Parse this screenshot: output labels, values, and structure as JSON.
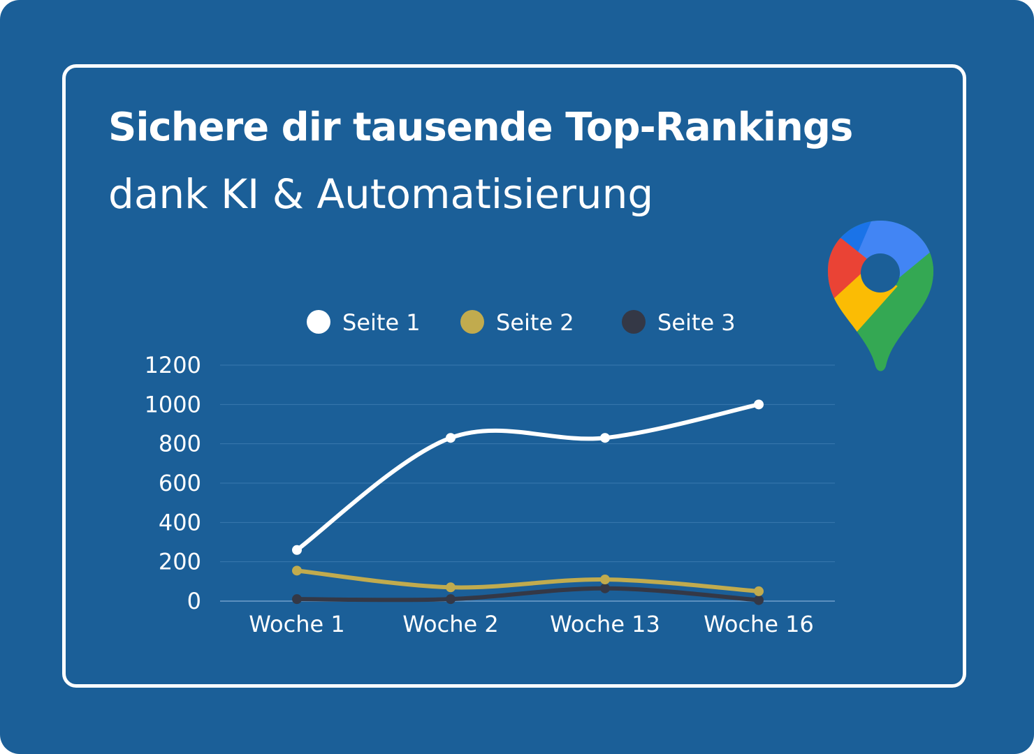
{
  "header": {
    "title": "Sichere dir tausende Top-Rankings",
    "subtitle": "dank KI & Automatisierung"
  },
  "logo": {
    "icon": "google-maps-pin-icon"
  },
  "colors": {
    "background": "#1b5f98",
    "seite1": "#ffffff",
    "seite2": "#c1ab4e",
    "seite3": "#343846"
  },
  "chart_data": {
    "type": "line",
    "title": "",
    "xlabel": "",
    "ylabel": "",
    "categories": [
      "Woche 1",
      "Woche 2",
      "Woche 13",
      "Woche 16"
    ],
    "ylim": [
      0,
      1200
    ],
    "yticks": [
      0,
      200,
      400,
      600,
      800,
      1000,
      1200
    ],
    "grid": true,
    "smooth": true,
    "legend_position": "top",
    "series": [
      {
        "name": "Seite 1",
        "color": "#ffffff",
        "values": [
          260,
          830,
          830,
          1000
        ]
      },
      {
        "name": "Seite 2",
        "color": "#c1ab4e",
        "values": [
          155,
          70,
          110,
          50
        ]
      },
      {
        "name": "Seite 3",
        "color": "#343846",
        "values": [
          10,
          10,
          65,
          5
        ]
      }
    ]
  }
}
